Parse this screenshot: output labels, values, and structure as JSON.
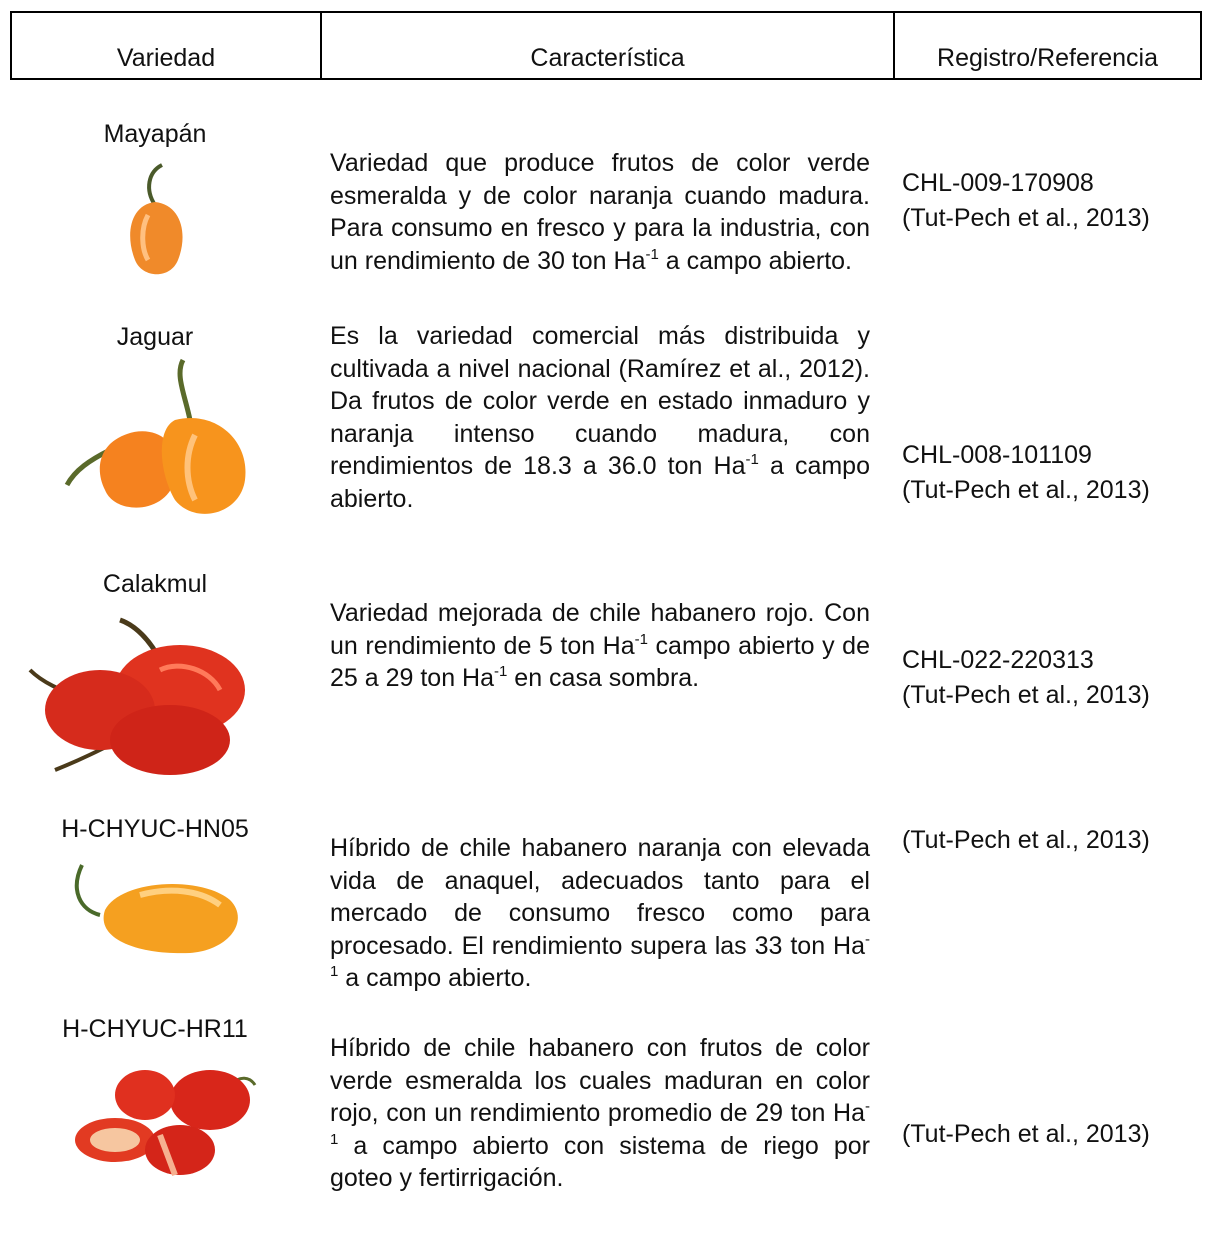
{
  "header": {
    "columns": [
      "Variedad",
      "Característica",
      "Registro/Referencia"
    ]
  },
  "table": {
    "rows": [
      {
        "variety": "Mayapán",
        "description": [
          "Variedad que produce frutos de color verde esmeralda y de color naranja cuando madura. Para consumo en fresco y para la industria, con un rendimiento de 30 ton Ha",
          {
            "sup": "-1"
          },
          " a campo abierto."
        ],
        "reference": [
          "CHL-009-170908",
          "(Tut-Pech et al., 2013)"
        ]
      },
      {
        "variety": "Jaguar",
        "description": [
          "Es la variedad comercial más distribuida y cultivada a nivel nacional (Ramírez et al., 2012). Da frutos de color verde en estado inmaduro y naranja intenso cuando madura, con rendimientos de 18.3 a 36.0 ton Ha",
          {
            "sup": "-1"
          },
          " a campo abierto."
        ],
        "reference": [
          "CHL-008-101109",
          "(Tut-Pech et al., 2013)"
        ]
      },
      {
        "variety": "Calakmul",
        "description": [
          "Variedad mejorada de chile habanero rojo. Con un rendimiento de 5 ton Ha",
          {
            "sup": "-1"
          },
          " campo abierto y de 25 a 29 ton Ha",
          {
            "sup": "-1"
          },
          " en casa sombra."
        ],
        "reference": [
          "CHL-022-220313",
          "(Tut-Pech et al., 2013)"
        ]
      },
      {
        "variety": "H-CHYUC-HN05",
        "description": [
          "Híbrido de chile habanero naranja con elevada vida de anaquel, adecuados tanto para el mercado de consumo fresco como para procesado. El rendimiento supera las 33 ton Ha",
          {
            "sup": "-1"
          },
          " a campo abierto."
        ],
        "reference": [
          "(Tut-Pech et al., 2013)"
        ]
      },
      {
        "variety": "H-CHYUC-HR11",
        "description": [
          "Híbrido de chile habanero con frutos de color verde esmeralda los cuales maduran en color rojo, con un rendimiento promedio de 29 ton Ha",
          {
            "sup": "-1"
          },
          " a campo abierto con sistema de riego por goteo y fertirrigación."
        ],
        "reference": [
          "(Tut-Pech et al., 2013)"
        ]
      }
    ]
  }
}
